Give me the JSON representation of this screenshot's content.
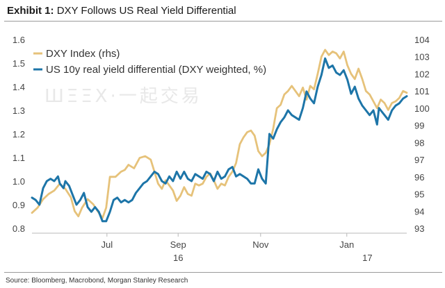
{
  "header": {
    "label": "Exhibit 1:",
    "title": "DXY Follows US Real Yield Differential"
  },
  "source": "Source: Bloomberg, Macrobond, Morgan Stanley Research",
  "watermark": "ШΞΞX·一起交易",
  "colors": {
    "dxy": "#E6C27A",
    "diff": "#1D75A8"
  },
  "chart_data": {
    "type": "line",
    "title": "DXY Follows US Real Yield Differential",
    "x_labels": [
      {
        "label": "Jul",
        "x": 0.2
      },
      {
        "label": "Sep",
        "x": 0.39
      },
      {
        "label": "Nov",
        "x": 0.61
      },
      {
        "label": "Jan",
        "x": 0.84
      }
    ],
    "x_year_labels": [
      {
        "label": "16",
        "x": 0.39
      },
      {
        "label": "17",
        "x": 0.895
      }
    ],
    "y_left": {
      "min": 0.8,
      "max": 1.6,
      "ticks": [
        "0.8",
        "0.9",
        "1.0",
        "1.1",
        "1.2",
        "1.3",
        "1.4",
        "1.5",
        "1.6"
      ]
    },
    "y_right": {
      "min": 93,
      "max": 104,
      "ticks": [
        "93",
        "94",
        "95",
        "96",
        "97",
        "98",
        "99",
        "100",
        "101",
        "102",
        "103",
        "104"
      ]
    },
    "legend": "top-left",
    "series": [
      {
        "name": "DXY Index (rhs)",
        "axis": "right",
        "color": "#E6C27A",
        "points": [
          [
            0.0,
            93.9
          ],
          [
            0.015,
            94.2
          ],
          [
            0.03,
            94.7
          ],
          [
            0.045,
            95.0
          ],
          [
            0.06,
            95.2
          ],
          [
            0.075,
            95.6
          ],
          [
            0.09,
            95.3
          ],
          [
            0.105,
            94.8
          ],
          [
            0.115,
            94.0
          ],
          [
            0.125,
            93.7
          ],
          [
            0.135,
            94.2
          ],
          [
            0.15,
            94.7
          ],
          [
            0.165,
            94.4
          ],
          [
            0.18,
            93.9
          ],
          [
            0.19,
            93.6
          ],
          [
            0.2,
            94.2
          ],
          [
            0.21,
            96.0
          ],
          [
            0.225,
            96.0
          ],
          [
            0.24,
            96.3
          ],
          [
            0.25,
            96.4
          ],
          [
            0.26,
            96.7
          ],
          [
            0.275,
            96.5
          ],
          [
            0.29,
            97.1
          ],
          [
            0.305,
            97.2
          ],
          [
            0.32,
            97.0
          ],
          [
            0.33,
            96.3
          ],
          [
            0.34,
            95.6
          ],
          [
            0.35,
            95.3
          ],
          [
            0.36,
            95.8
          ],
          [
            0.37,
            95.5
          ],
          [
            0.38,
            95.2
          ],
          [
            0.39,
            94.6
          ],
          [
            0.4,
            94.9
          ],
          [
            0.41,
            95.4
          ],
          [
            0.42,
            95.0
          ],
          [
            0.43,
            94.9
          ],
          [
            0.44,
            95.6
          ],
          [
            0.45,
            95.5
          ],
          [
            0.46,
            95.6
          ],
          [
            0.47,
            96.0
          ],
          [
            0.48,
            96.2
          ],
          [
            0.49,
            95.8
          ],
          [
            0.5,
            95.3
          ],
          [
            0.51,
            95.6
          ],
          [
            0.52,
            95.5
          ],
          [
            0.53,
            96.0
          ],
          [
            0.54,
            96.3
          ],
          [
            0.55,
            96.8
          ],
          [
            0.56,
            97.9
          ],
          [
            0.57,
            98.3
          ],
          [
            0.58,
            98.6
          ],
          [
            0.59,
            98.7
          ],
          [
            0.6,
            98.4
          ],
          [
            0.61,
            97.5
          ],
          [
            0.62,
            97.2
          ],
          [
            0.63,
            97.4
          ],
          [
            0.64,
            97.9
          ],
          [
            0.65,
            98.8
          ],
          [
            0.655,
            99.4
          ],
          [
            0.66,
            100.0
          ],
          [
            0.67,
            100.2
          ],
          [
            0.68,
            100.8
          ],
          [
            0.69,
            101.0
          ],
          [
            0.7,
            101.3
          ],
          [
            0.71,
            101.0
          ],
          [
            0.72,
            100.7
          ],
          [
            0.73,
            101.2
          ],
          [
            0.74,
            100.5
          ],
          [
            0.75,
            101.3
          ],
          [
            0.76,
            101.1
          ],
          [
            0.77,
            102.0
          ],
          [
            0.78,
            103.0
          ],
          [
            0.79,
            103.4
          ],
          [
            0.8,
            103.1
          ],
          [
            0.81,
            103.3
          ],
          [
            0.82,
            103.2
          ],
          [
            0.83,
            102.9
          ],
          [
            0.84,
            103.3
          ],
          [
            0.85,
            102.5
          ],
          [
            0.86,
            102.0
          ],
          [
            0.87,
            101.7
          ],
          [
            0.88,
            102.3
          ],
          [
            0.89,
            101.7
          ],
          [
            0.9,
            101.0
          ],
          [
            0.91,
            100.8
          ],
          [
            0.92,
            100.4
          ],
          [
            0.93,
            100.0
          ],
          [
            0.94,
            100.5
          ],
          [
            0.95,
            100.3
          ],
          [
            0.96,
            99.9
          ],
          [
            0.97,
            100.3
          ],
          [
            0.98,
            100.4
          ],
          [
            0.99,
            100.6
          ],
          [
            1.0,
            101.0
          ],
          [
            1.01,
            100.9
          ]
        ]
      },
      {
        "name": "US 10y real yield differential (DXY weighted, %)",
        "axis": "left",
        "color": "#1D75A8",
        "points": [
          [
            0.0,
            0.93
          ],
          [
            0.01,
            0.92
          ],
          [
            0.02,
            0.9
          ],
          [
            0.03,
            0.97
          ],
          [
            0.04,
            1.0
          ],
          [
            0.05,
            1.01
          ],
          [
            0.06,
            1.0
          ],
          [
            0.07,
            1.02
          ],
          [
            0.075,
            0.99
          ],
          [
            0.085,
            0.97
          ],
          [
            0.09,
            1.0
          ],
          [
            0.1,
            0.98
          ],
          [
            0.11,
            0.94
          ],
          [
            0.12,
            0.9
          ],
          [
            0.13,
            0.92
          ],
          [
            0.14,
            0.95
          ],
          [
            0.15,
            0.89
          ],
          [
            0.16,
            0.87
          ],
          [
            0.17,
            0.89
          ],
          [
            0.18,
            0.87
          ],
          [
            0.19,
            0.83
          ],
          [
            0.2,
            0.83
          ],
          [
            0.21,
            0.87
          ],
          [
            0.22,
            0.92
          ],
          [
            0.23,
            0.93
          ],
          [
            0.24,
            0.91
          ],
          [
            0.25,
            0.92
          ],
          [
            0.26,
            0.91
          ],
          [
            0.27,
            0.92
          ],
          [
            0.28,
            0.95
          ],
          [
            0.29,
            0.97
          ],
          [
            0.3,
            0.99
          ],
          [
            0.31,
            1.0
          ],
          [
            0.32,
            1.02
          ],
          [
            0.33,
            1.04
          ],
          [
            0.34,
            1.03
          ],
          [
            0.35,
            1.0
          ],
          [
            0.36,
            0.99
          ],
          [
            0.37,
            1.02
          ],
          [
            0.38,
            1.0
          ],
          [
            0.39,
            1.04
          ],
          [
            0.4,
            1.01
          ],
          [
            0.41,
            1.04
          ],
          [
            0.42,
            1.01
          ],
          [
            0.43,
            1.0
          ],
          [
            0.44,
            1.03
          ],
          [
            0.45,
            1.02
          ],
          [
            0.46,
            1.01
          ],
          [
            0.47,
            1.04
          ],
          [
            0.48,
            1.03
          ],
          [
            0.49,
            1.0
          ],
          [
            0.5,
            1.04
          ],
          [
            0.51,
            1.01
          ],
          [
            0.52,
            1.02
          ],
          [
            0.53,
            1.05
          ],
          [
            0.54,
            1.06
          ],
          [
            0.55,
            1.02
          ],
          [
            0.56,
            1.03
          ],
          [
            0.57,
            1.02
          ],
          [
            0.58,
            1.01
          ],
          [
            0.59,
            0.99
          ],
          [
            0.6,
            0.99
          ],
          [
            0.61,
            1.05
          ],
          [
            0.62,
            1.01
          ],
          [
            0.63,
            0.99
          ],
          [
            0.64,
            1.2
          ],
          [
            0.65,
            1.18
          ],
          [
            0.66,
            1.22
          ],
          [
            0.67,
            1.25
          ],
          [
            0.68,
            1.27
          ],
          [
            0.69,
            1.3
          ],
          [
            0.7,
            1.28
          ],
          [
            0.71,
            1.27
          ],
          [
            0.72,
            1.26
          ],
          [
            0.73,
            1.31
          ],
          [
            0.74,
            1.38
          ],
          [
            0.75,
            1.35
          ],
          [
            0.76,
            1.33
          ],
          [
            0.77,
            1.4
          ],
          [
            0.78,
            1.45
          ],
          [
            0.79,
            1.52
          ],
          [
            0.8,
            1.48
          ],
          [
            0.81,
            1.49
          ],
          [
            0.82,
            1.46
          ],
          [
            0.83,
            1.45
          ],
          [
            0.84,
            1.47
          ],
          [
            0.85,
            1.43
          ],
          [
            0.86,
            1.37
          ],
          [
            0.87,
            1.4
          ],
          [
            0.88,
            1.35
          ],
          [
            0.89,
            1.32
          ],
          [
            0.9,
            1.3
          ],
          [
            0.91,
            1.28
          ],
          [
            0.92,
            1.3
          ],
          [
            0.93,
            1.24
          ],
          [
            0.935,
            1.31
          ],
          [
            0.94,
            1.3
          ],
          [
            0.95,
            1.28
          ],
          [
            0.96,
            1.26
          ],
          [
            0.97,
            1.3
          ],
          [
            0.98,
            1.32
          ],
          [
            0.99,
            1.33
          ],
          [
            1.0,
            1.35
          ],
          [
            1.01,
            1.36
          ]
        ]
      }
    ]
  }
}
